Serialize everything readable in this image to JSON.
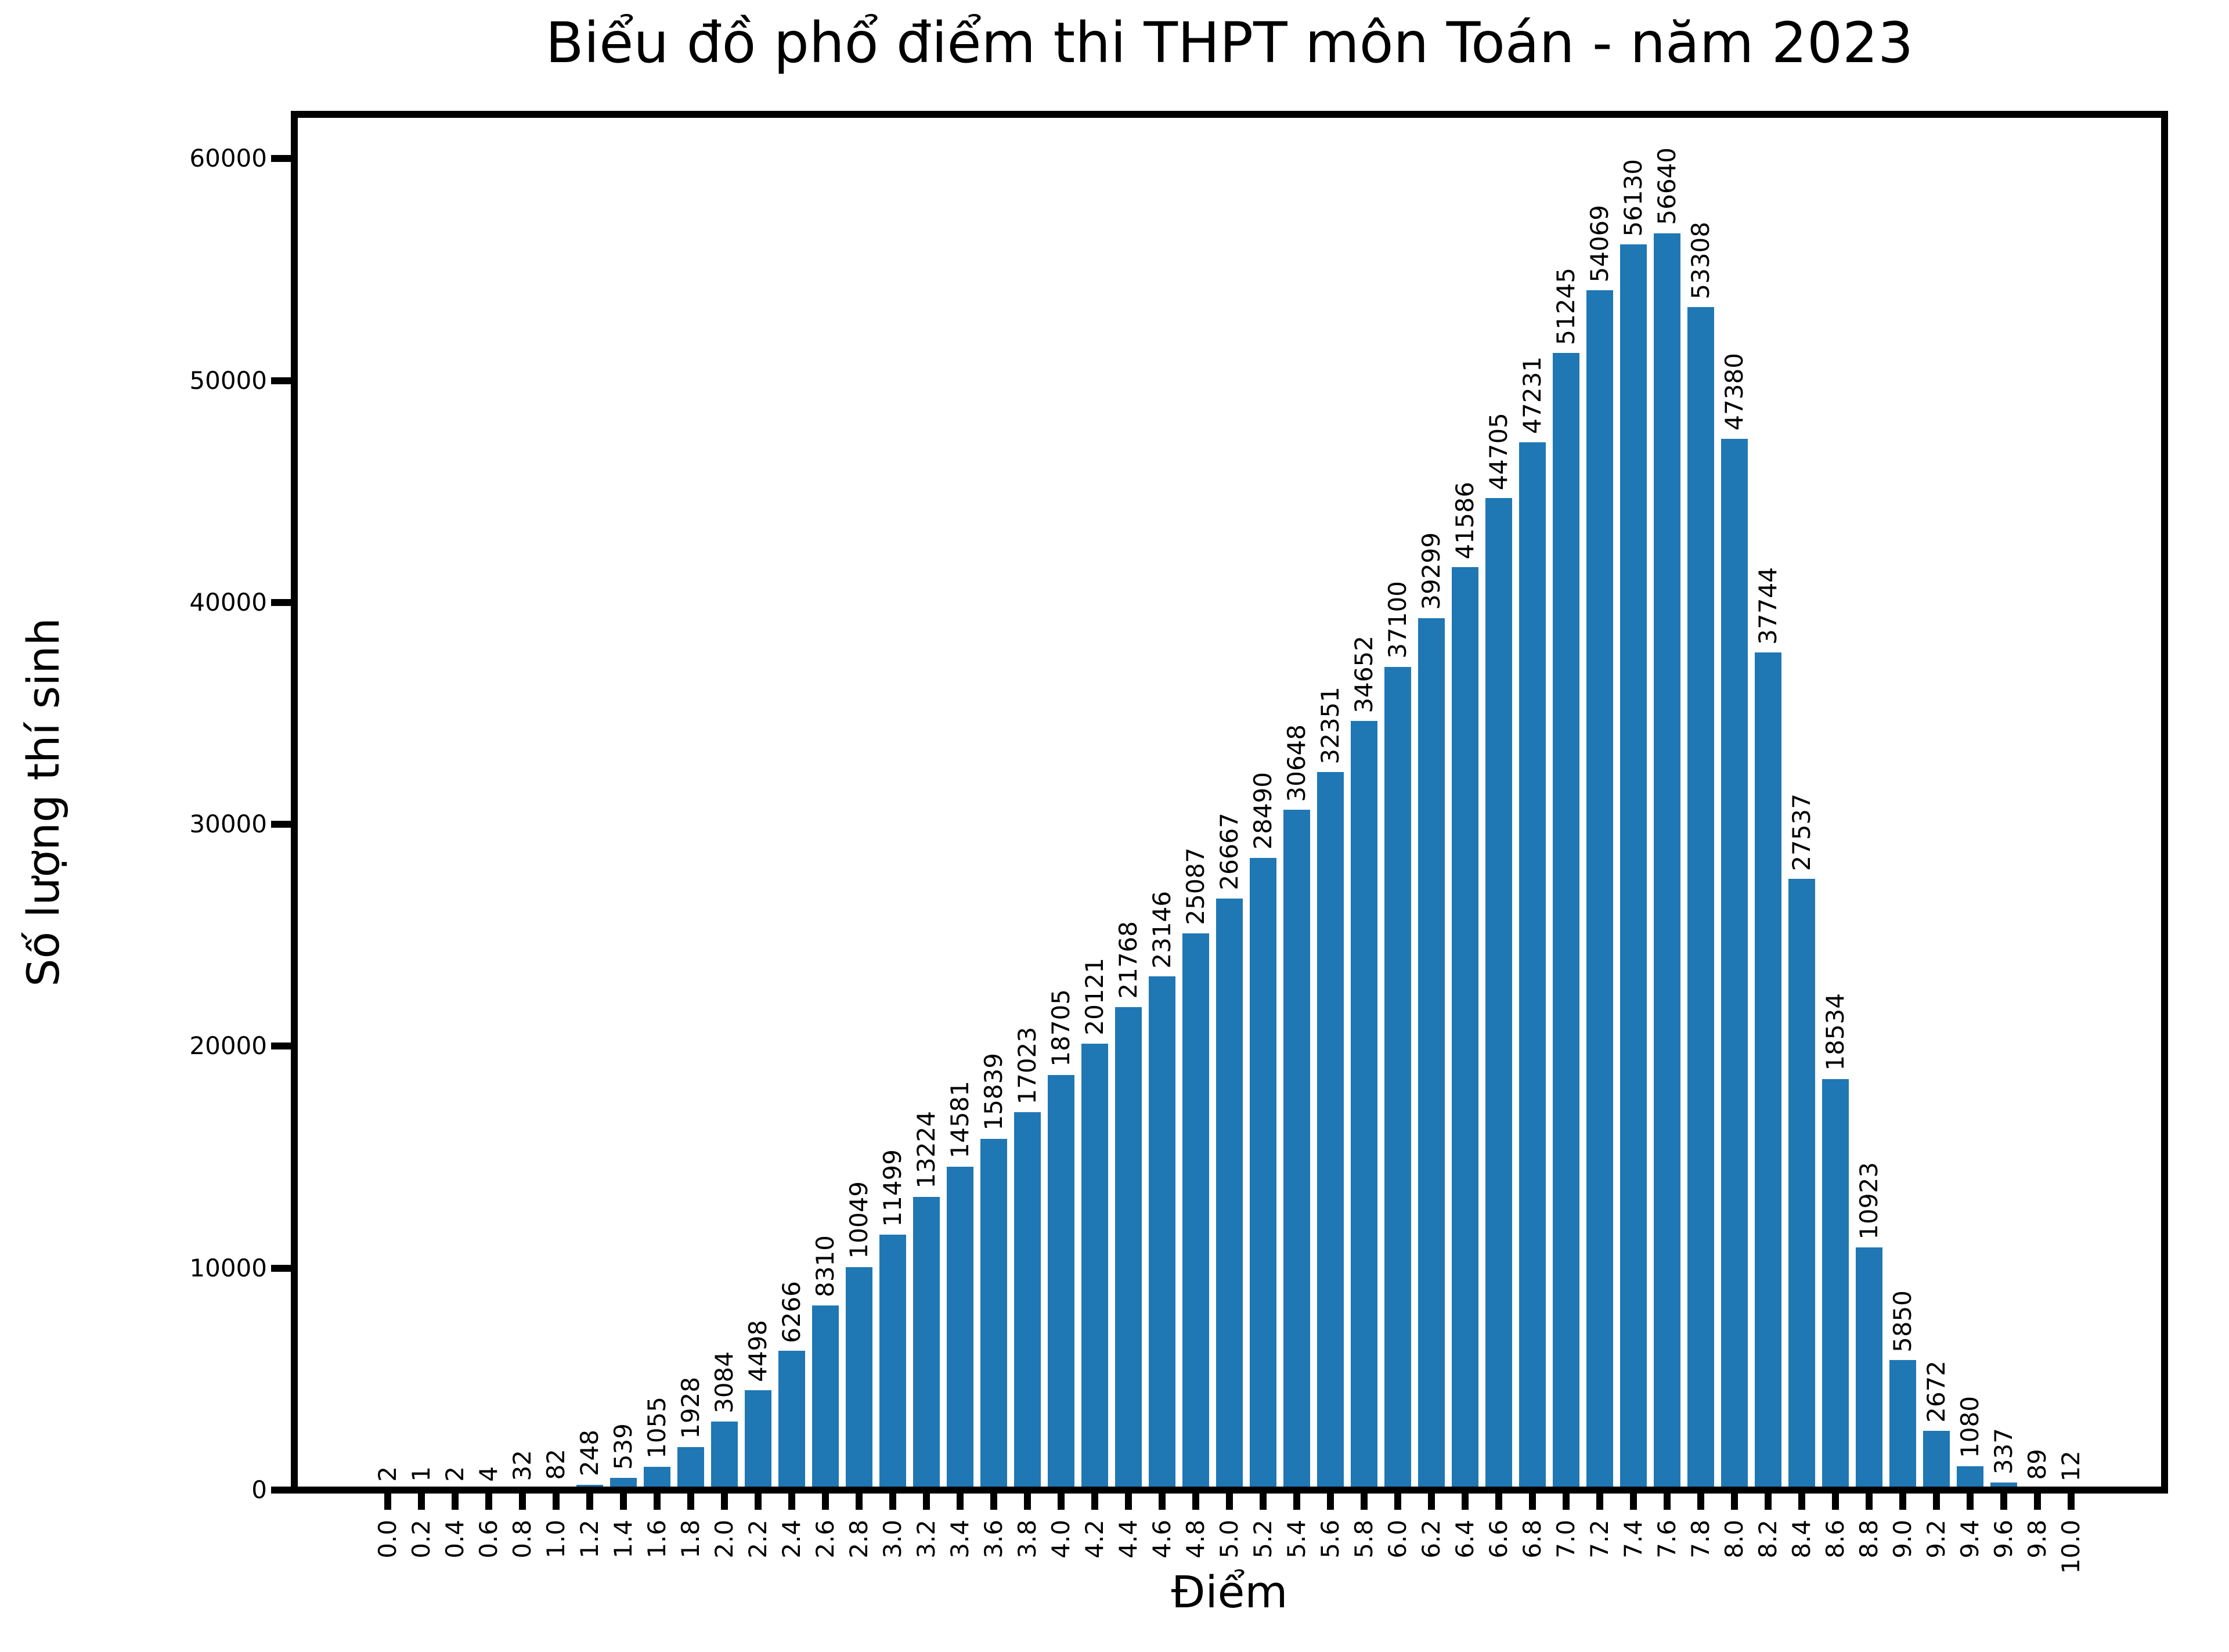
{
  "chart_data": {
    "type": "bar",
    "title": "Biểu đồ phổ điểm thi THPT môn Toán - năm 2023",
    "xlabel": "Điểm",
    "ylabel": "Số lượng thí sinh",
    "bar_color": "#1f77b4",
    "background_color": "#ffffff",
    "ylim": [
      0,
      62000
    ],
    "grid": false,
    "legend": "none",
    "bar_label_rotation": 90,
    "xtick_rotation": 90,
    "yticks": [
      0,
      10000,
      20000,
      30000,
      40000,
      50000,
      60000
    ],
    "yticklabels": [
      "0",
      "10000",
      "20000",
      "30000",
      "40000",
      "50000",
      "60000"
    ],
    "categories": [
      "0.0",
      "0.2",
      "0.4",
      "0.6",
      "0.8",
      "1.0",
      "1.2",
      "1.4",
      "1.6",
      "1.8",
      "2.0",
      "2.2",
      "2.4",
      "2.6",
      "2.8",
      "3.0",
      "3.2",
      "3.4",
      "3.6",
      "3.8",
      "4.0",
      "4.2",
      "4.4",
      "4.6",
      "4.8",
      "5.0",
      "5.2",
      "5.4",
      "5.6",
      "5.8",
      "6.0",
      "6.2",
      "6.4",
      "6.6",
      "6.8",
      "7.0",
      "7.2",
      "7.4",
      "7.6",
      "7.8",
      "8.0",
      "8.2",
      "8.4",
      "8.6",
      "8.8",
      "9.0",
      "9.2",
      "9.4",
      "9.6",
      "9.8",
      "10.0"
    ],
    "values": [
      2,
      1,
      2,
      4,
      32,
      82,
      248,
      539,
      1055,
      1928,
      3084,
      4498,
      6266,
      8310,
      10049,
      11499,
      13224,
      14581,
      15839,
      17023,
      18705,
      20121,
      21768,
      23146,
      25087,
      26667,
      28490,
      30648,
      32351,
      34652,
      37100,
      39299,
      41586,
      44705,
      47231,
      51245,
      54069,
      56130,
      56640,
      53308,
      47380,
      37744,
      27537,
      18534,
      10923,
      5850,
      2672,
      1080,
      337,
      89,
      12
    ]
  }
}
